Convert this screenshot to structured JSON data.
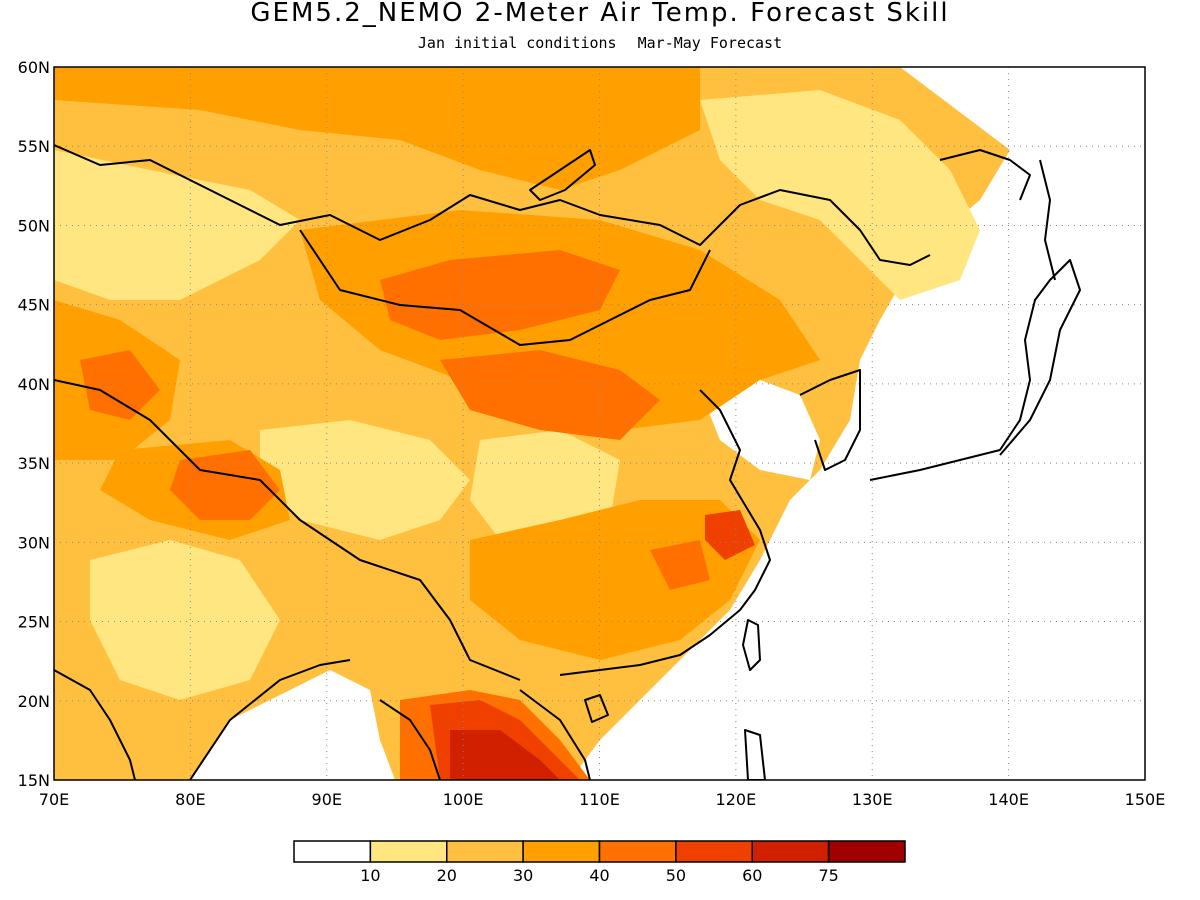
{
  "title": "GEM5.2_NEMO 2-Meter Air Temp. Forecast Skill",
  "subtitle": {
    "initial": "Jan initial conditions",
    "forecast": "Mar-May Forecast"
  },
  "map": {
    "lon_range": [
      70,
      150
    ],
    "lat_range": [
      15,
      60
    ],
    "lon_labels": [
      "70E",
      "80E",
      "90E",
      "100E",
      "110E",
      "120E",
      "130E",
      "140E",
      "150E"
    ],
    "lat_labels": [
      "15N",
      "20N",
      "25N",
      "30N",
      "35N",
      "40N",
      "45N",
      "50N",
      "55N",
      "60N"
    ],
    "grid": "dotted"
  },
  "colorbar": {
    "colors": [
      "#ffffff",
      "#ffe680",
      "#ffc040",
      "#ffa000",
      "#ff7000",
      "#f04000",
      "#d02000",
      "#a00000"
    ],
    "labels": [
      "10",
      "20",
      "30",
      "40",
      "50",
      "60",
      "75"
    ]
  }
}
